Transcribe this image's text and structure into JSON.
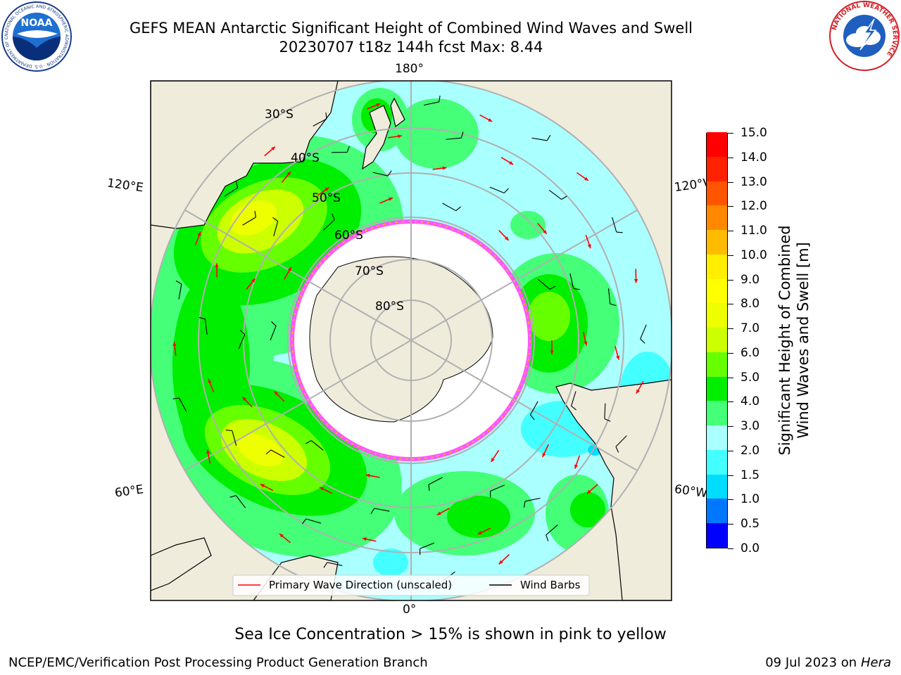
{
  "header": {
    "title_line1": "GEFS MEAN Antarctic Significant Height of Combined Wind Waves and Swell",
    "title_line2": "20230707 t18z 144h fcst   Max: 8.44"
  },
  "logos": {
    "noaa": {
      "text": "NOAA",
      "ring_text": "NATIONAL OCEANIC AND ATMOSPHERIC ADMINISTRATION · U.S. DEPARTMENT OF COMMERCE",
      "icon": "noaa-seagull-logo"
    },
    "nws": {
      "ring_text": "NATIONAL WEATHER SERVICE",
      "icon": "nws-lightning-cloud-logo"
    }
  },
  "map": {
    "projection": "south-polar-stereographic",
    "longitude_labels": {
      "top": "180°",
      "bottom": "0°",
      "upper_left": "120°E",
      "upper_right": "120°W",
      "lower_left": "60°E",
      "lower_right": "60°W"
    },
    "latitude_labels": [
      "30°S",
      "40°S",
      "50°S",
      "60°S",
      "70°S",
      "80°S"
    ],
    "colors": {
      "land": "#efecdc",
      "ocean_low": "#aaffff",
      "coast": "#000000",
      "wave_arrow": "#ff0000",
      "barb": "#000000",
      "ice_edge": "#ff55ff",
      "grid": "#b0b0b0"
    }
  },
  "legend": {
    "items": [
      {
        "label": "Primary Wave Direction (unscaled)",
        "color": "#ff0000"
      },
      {
        "label": "Wind Barbs",
        "color": "#000000"
      }
    ]
  },
  "colorbar": {
    "title_line1": "Significant Height of Combined",
    "title_line2": "Wind Waves and Swell [m]",
    "levels": [
      "0.0",
      "0.5",
      "1.0",
      "1.5",
      "2.0",
      "3.0",
      "4.0",
      "5.0",
      "6.0",
      "7.0",
      "8.0",
      "9.0",
      "10.0",
      "11.0",
      "12.0",
      "13.0",
      "14.0",
      "15.0"
    ],
    "colors": [
      "#0000ff",
      "#0077ff",
      "#00ddff",
      "#44ffff",
      "#aaffff",
      "#44ff77",
      "#00ee00",
      "#66ff00",
      "#ccff00",
      "#eeff00",
      "#ffff00",
      "#ffee00",
      "#ffbb00",
      "#ff8800",
      "#ff5500",
      "#ff2200",
      "#ff0000"
    ]
  },
  "footer": {
    "sea_ice_note": "Sea Ice Concentration > 15% is shown in pink to yellow",
    "credit": "NCEP/EMC/Verification Post Processing Product Generation Branch",
    "date_text": "09 Jul 2023 on ",
    "machine": "Hera"
  }
}
